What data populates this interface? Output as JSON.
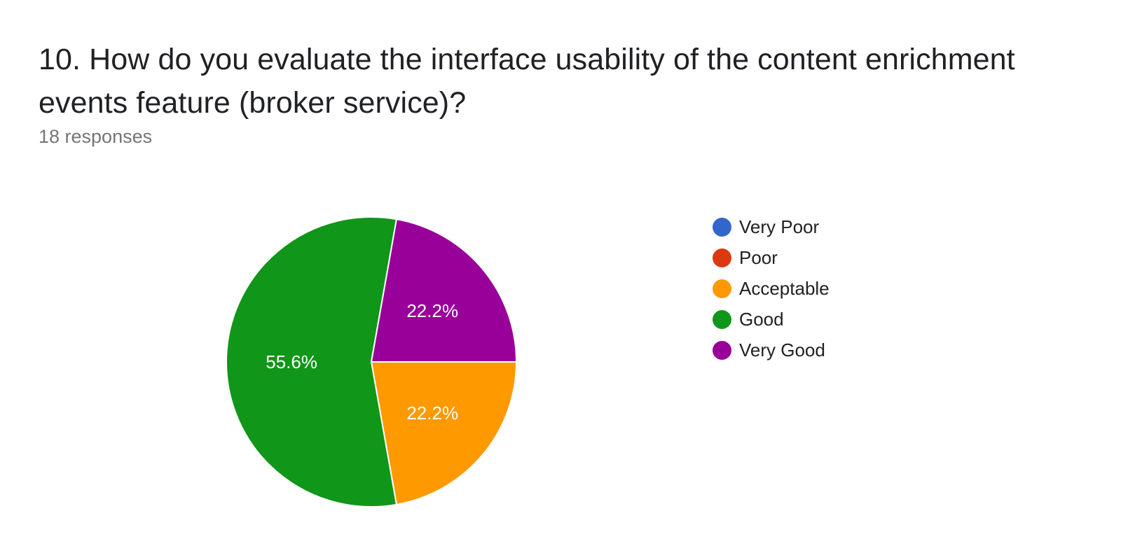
{
  "question": {
    "title": "10. How do you evaluate the interface usability of the content enrichment events feature (broker service)?",
    "responses": "18 responses"
  },
  "chart_data": {
    "type": "pie",
    "title": "10. How do you evaluate the interface usability of the content enrichment events feature (broker service)?",
    "subtitle": "18 responses",
    "start_angle_deg": 0,
    "legend_position": "right",
    "slices": [
      {
        "name": "Very Poor",
        "value": 0,
        "percent": 0,
        "label": "",
        "color": "#3366cc"
      },
      {
        "name": "Poor",
        "value": 0,
        "percent": 0,
        "label": "",
        "color": "#dc3912"
      },
      {
        "name": "Acceptable",
        "value": 4,
        "percent": 22.2,
        "label": "22.2%",
        "color": "#ff9900"
      },
      {
        "name": "Good",
        "value": 10,
        "percent": 55.6,
        "label": "55.6%",
        "color": "#109618"
      },
      {
        "name": "Very Good",
        "value": 4,
        "percent": 22.2,
        "label": "22.2%",
        "color": "#990099"
      }
    ]
  }
}
